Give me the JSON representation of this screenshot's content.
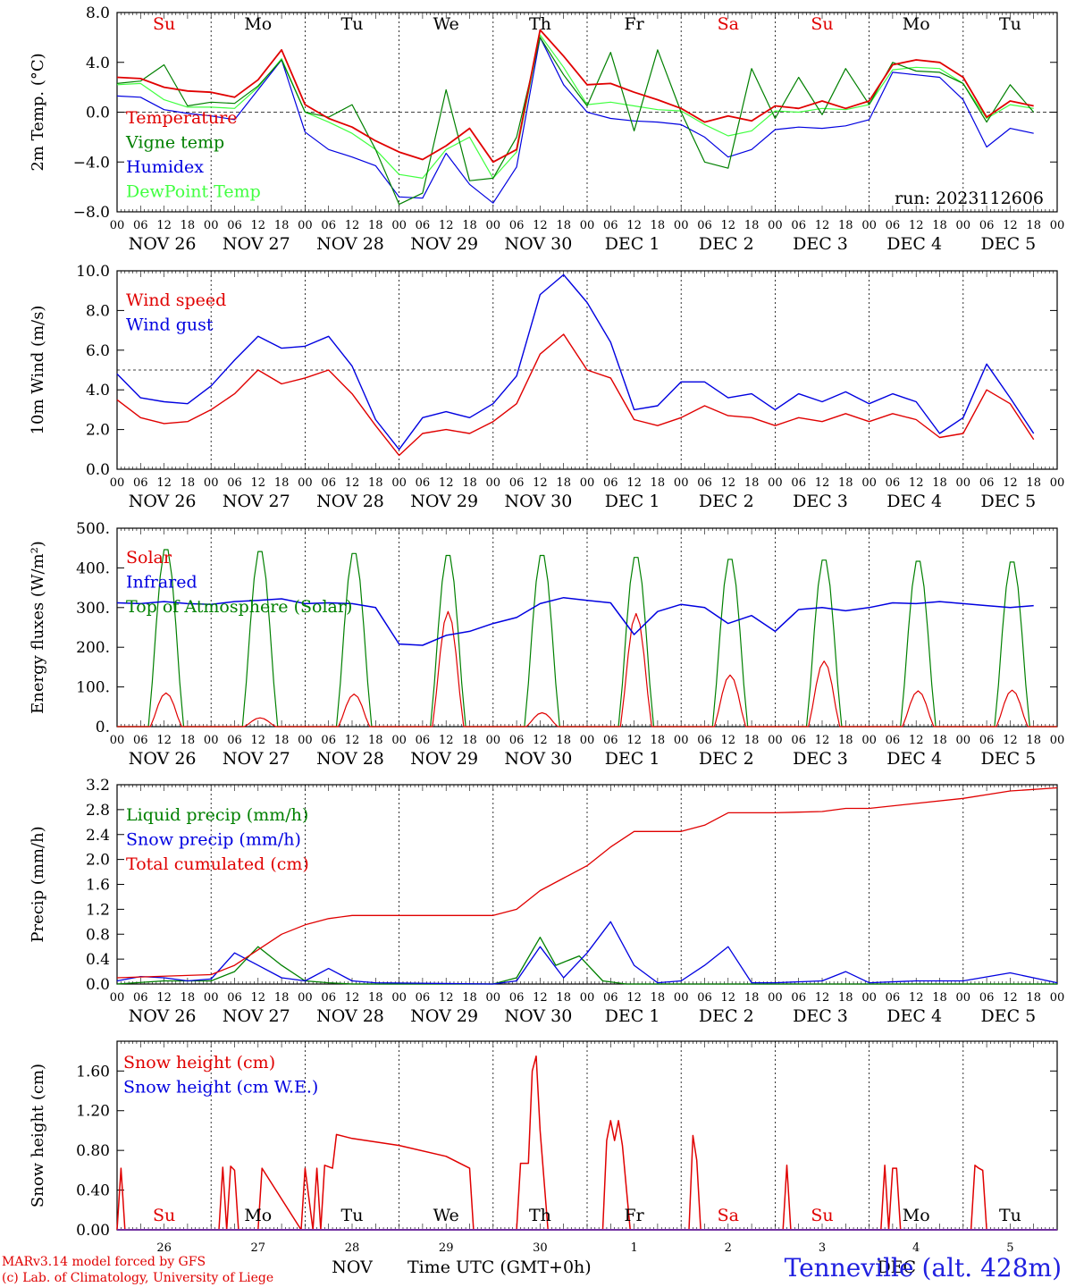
{
  "time": {
    "hours": [
      "00",
      "06",
      "12",
      "18"
    ],
    "date_labels": [
      "NOV 26",
      "NOV 27",
      "NOV 28",
      "NOV 29",
      "NOV 30",
      "DEC  1",
      "DEC  2",
      "DEC  3",
      "DEC  4",
      "DEC  5"
    ],
    "weekdays": [
      "Su",
      "Mo",
      "Tu",
      "We",
      "Th",
      "Fr",
      "Sa",
      "Su",
      "Mo",
      "Tu"
    ],
    "weekday_colors": [
      "#e00000",
      "#000000",
      "#000000",
      "#000000",
      "#000000",
      "#000000",
      "#e00000",
      "#e00000",
      "#000000",
      "#000000"
    ],
    "day_numbers": [
      "26",
      "27",
      "28",
      "29",
      "30",
      "1",
      "2",
      "3",
      "4",
      "5"
    ],
    "month_labels": [
      "NOV",
      "DEC"
    ],
    "xlabel": "Time UTC (GMT+0h)"
  },
  "footer": {
    "credit_line1": "MARv3.14 model forced by GFS",
    "credit_line2": "(c) Lab. of Climatology, University of Liege",
    "station": "Tenneville (alt. 428m)"
  },
  "chart_data": [
    {
      "type": "line",
      "ylabel": "2m Temp. (°C)",
      "ylim": [
        -8,
        8
      ],
      "yticks": [
        "8.0",
        "4.0",
        "0.0",
        "−4.0",
        "−8.0"
      ],
      "ytick_values": [
        8,
        4,
        0,
        -4,
        -8
      ],
      "reference_line": 0,
      "annotation": "run: 2023112606",
      "x_hours_from_start": [
        0,
        6,
        12,
        18,
        24,
        30,
        36,
        42,
        48,
        54,
        60,
        66,
        72,
        78,
        84,
        90,
        96,
        102,
        108,
        114,
        120,
        126,
        132,
        138,
        144,
        150,
        156,
        162,
        168,
        174,
        180,
        186,
        192,
        198,
        204,
        210,
        216,
        222,
        228,
        234
      ],
      "series": [
        {
          "name": "Temperature",
          "color": "#e00000",
          "values": [
            2.8,
            2.7,
            2.0,
            1.7,
            1.6,
            1.2,
            2.6,
            5.0,
            0.6,
            -0.5,
            -1.2,
            -2.3,
            -3.2,
            -3.8,
            -2.7,
            -1.3,
            -4.0,
            -3.0,
            6.6,
            4.5,
            2.2,
            2.3,
            1.6,
            1.0,
            0.3,
            -0.8,
            -0.3,
            -0.7,
            0.5,
            0.3,
            0.9,
            0.3,
            0.9,
            3.8,
            4.2,
            4.0,
            2.8,
            -0.4,
            0.9,
            0.5
          ]
        },
        {
          "name": "Vigne temp",
          "color": "#008000",
          "values": [
            2.3,
            2.5,
            3.8,
            0.5,
            0.8,
            0.7,
            2.1,
            4.2,
            0.0,
            -0.4,
            0.6,
            -3.0,
            -7.4,
            -6.5,
            1.8,
            -5.5,
            -5.3,
            -2.0,
            6.0,
            3.0,
            0.5,
            4.8,
            -1.5,
            5.0,
            0.0,
            -4.0,
            -4.5,
            3.5,
            -0.5,
            2.8,
            -0.2,
            3.5,
            0.6,
            4.0,
            3.3,
            3.2,
            2.3,
            -0.8,
            2.2,
            0.0
          ]
        },
        {
          "name": "Humidex",
          "color": "#0000e0",
          "values": [
            1.3,
            1.2,
            0.2,
            -0.1,
            -0.3,
            -0.6,
            1.8,
            4.2,
            -1.6,
            -3.0,
            -3.6,
            -4.3,
            -6.8,
            -6.9,
            -3.3,
            -5.8,
            -7.3,
            -4.4,
            6.0,
            2.2,
            0.0,
            -0.5,
            -0.7,
            -0.8,
            -1.0,
            -2.0,
            -3.6,
            -3.0,
            -1.4,
            -1.2,
            -1.3,
            -1.1,
            -0.6,
            3.2,
            3.0,
            2.8,
            1.0,
            -2.8,
            -1.3,
            -1.7
          ]
        },
        {
          "name": "DewPoint Temp",
          "color": "#40ff40",
          "values": [
            2.2,
            2.3,
            1.0,
            0.4,
            0.4,
            0.3,
            2.0,
            4.3,
            0.0,
            -0.8,
            -1.7,
            -3.0,
            -5.0,
            -5.3,
            -3.0,
            -2.0,
            -5.3,
            -3.2,
            6.2,
            3.6,
            0.6,
            0.8,
            0.5,
            0.2,
            0.1,
            -1.0,
            -1.9,
            -1.5,
            0.1,
            0.0,
            0.3,
            0.2,
            0.6,
            3.4,
            3.6,
            3.5,
            2.3,
            -0.5,
            0.6,
            0.3
          ]
        }
      ]
    },
    {
      "type": "line",
      "ylabel": "10m Wind (m/s)",
      "ylim": [
        0,
        10
      ],
      "yticks": [
        "10.0",
        "8.0",
        "6.0",
        "4.0",
        "2.0",
        "0.0"
      ],
      "ytick_values": [
        10,
        8,
        6,
        4,
        2,
        0
      ],
      "reference_line": 5,
      "x_hours_from_start": [
        0,
        6,
        12,
        18,
        24,
        30,
        36,
        42,
        48,
        54,
        60,
        66,
        72,
        78,
        84,
        90,
        96,
        102,
        108,
        114,
        120,
        126,
        132,
        138,
        144,
        150,
        156,
        162,
        168,
        174,
        180,
        186,
        192,
        198,
        204,
        210,
        216,
        222,
        228,
        234
      ],
      "series": [
        {
          "name": "Wind speed",
          "color": "#e00000",
          "values": [
            3.5,
            2.6,
            2.3,
            2.4,
            3.0,
            3.8,
            5.0,
            4.3,
            4.6,
            5.0,
            3.8,
            2.2,
            0.7,
            1.8,
            2.0,
            1.8,
            2.4,
            3.3,
            5.8,
            6.8,
            5.0,
            4.6,
            2.5,
            2.2,
            2.6,
            3.2,
            2.7,
            2.6,
            2.2,
            2.6,
            2.4,
            2.8,
            2.4,
            2.8,
            2.5,
            1.6,
            1.8,
            4.0,
            3.3,
            1.5
          ]
        },
        {
          "name": "Wind gust",
          "color": "#0000e0",
          "values": [
            4.8,
            3.6,
            3.4,
            3.3,
            4.2,
            5.5,
            6.7,
            6.1,
            6.2,
            6.7,
            5.2,
            2.5,
            1.0,
            2.6,
            2.9,
            2.6,
            3.3,
            4.7,
            8.8,
            9.8,
            8.4,
            6.4,
            3.0,
            3.2,
            4.4,
            4.4,
            3.6,
            3.8,
            3.0,
            3.8,
            3.4,
            3.9,
            3.3,
            3.8,
            3.4,
            1.8,
            2.6,
            5.3,
            3.6,
            1.8
          ]
        }
      ]
    },
    {
      "type": "line",
      "ylabel": "Energy fluxes (W/m²)",
      "ylim": [
        0,
        500
      ],
      "yticks": [
        "500.",
        "400.",
        "300.",
        "200.",
        "100.",
        "0."
      ],
      "ytick_values": [
        500,
        400,
        300,
        200,
        100,
        0
      ],
      "daily_peaks": {
        "Solar": [
          85,
          22,
          82,
          290,
          35,
          285,
          130,
          165,
          90,
          92
        ],
        "Top of Atmosphere (Solar)": [
          455,
          450,
          445,
          440,
          440,
          435,
          430,
          428,
          425,
          423
        ]
      },
      "series": [
        {
          "name": "Solar",
          "color": "#e00000"
        },
        {
          "name": "Infrared",
          "color": "#0000e0",
          "x_hours_from_start": [
            0,
            6,
            12,
            18,
            24,
            30,
            36,
            42,
            48,
            54,
            60,
            66,
            72,
            78,
            84,
            90,
            96,
            102,
            108,
            114,
            120,
            126,
            132,
            138,
            144,
            150,
            156,
            162,
            168,
            174,
            180,
            186,
            192,
            198,
            204,
            210,
            216,
            222,
            228,
            234
          ],
          "values": [
            312,
            310,
            315,
            310,
            308,
            315,
            318,
            322,
            310,
            312,
            310,
            300,
            208,
            205,
            230,
            240,
            260,
            275,
            310,
            325,
            318,
            312,
            232,
            290,
            308,
            300,
            260,
            280,
            240,
            295,
            300,
            292,
            300,
            312,
            310,
            315,
            310,
            305,
            300,
            305
          ]
        },
        {
          "name": "Top of Atmosphere (Solar)",
          "color": "#008000"
        }
      ]
    },
    {
      "type": "line",
      "ylabel": "Precip (mm/h)",
      "ylim": [
        0,
        3.2
      ],
      "yticks": [
        "3.2",
        "2.8",
        "2.4",
        "2.0",
        "1.6",
        "1.2",
        "0.8",
        "0.4",
        "0.0"
      ],
      "ytick_values": [
        3.2,
        2.8,
        2.4,
        2.0,
        1.6,
        1.2,
        0.8,
        0.4,
        0
      ],
      "series": [
        {
          "name": "Liquid precip (mm/h)",
          "color": "#008000",
          "x_hours_from_start": [
            0,
            12,
            24,
            30,
            36,
            42,
            48,
            54,
            60,
            72,
            96,
            102,
            108,
            112,
            118,
            124,
            130,
            144,
            168,
            192,
            216,
            240
          ],
          "values": [
            0,
            0.05,
            0.05,
            0.2,
            0.6,
            0.3,
            0.05,
            0.02,
            0,
            0,
            0,
            0.1,
            0.75,
            0.3,
            0.45,
            0.05,
            0,
            0,
            0,
            0,
            0,
            0
          ]
        },
        {
          "name": "Snow precip (mm/h)",
          "color": "#0000e0",
          "x_hours_from_start": [
            0,
            6,
            12,
            18,
            24,
            30,
            36,
            42,
            48,
            54,
            60,
            66,
            96,
            102,
            108,
            114,
            120,
            126,
            132,
            138,
            144,
            150,
            156,
            162,
            168,
            180,
            186,
            192,
            204,
            216,
            228,
            240
          ],
          "values": [
            0.05,
            0.12,
            0.1,
            0.05,
            0.08,
            0.5,
            0.3,
            0.1,
            0.05,
            0.25,
            0.05,
            0.02,
            0,
            0.05,
            0.6,
            0.1,
            0.5,
            1.0,
            0.3,
            0.02,
            0.05,
            0.3,
            0.6,
            0.02,
            0.02,
            0.05,
            0.2,
            0.02,
            0.05,
            0.05,
            0.18,
            0.02
          ]
        },
        {
          "name": "Total cumulated (cm)",
          "color": "#e00000",
          "x_hours_from_start": [
            0,
            24,
            30,
            36,
            42,
            48,
            54,
            60,
            72,
            84,
            96,
            102,
            108,
            114,
            120,
            126,
            132,
            138,
            144,
            150,
            156,
            168,
            180,
            186,
            192,
            204,
            216,
            228,
            240
          ],
          "values": [
            0.1,
            0.15,
            0.3,
            0.55,
            0.8,
            0.95,
            1.05,
            1.1,
            1.1,
            1.1,
            1.1,
            1.2,
            1.5,
            1.7,
            1.9,
            2.2,
            2.45,
            2.45,
            2.45,
            2.55,
            2.75,
            2.75,
            2.77,
            2.82,
            2.82,
            2.9,
            2.98,
            3.1,
            3.15
          ]
        }
      ]
    },
    {
      "type": "line",
      "ylabel": "Snow height (cm)",
      "ylim": [
        0,
        1.9
      ],
      "yticks": [
        "1.60",
        "1.20",
        "0.80",
        "0.40",
        "0.00"
      ],
      "ytick_values": [
        1.6,
        1.2,
        0.8,
        0.4,
        0
      ],
      "series": [
        {
          "name": "Snow height (cm)",
          "color": "#e00000",
          "x_hours_from_start": [
            0,
            1,
            2,
            26,
            27,
            28,
            29,
            30,
            31,
            36,
            37,
            47,
            48,
            50,
            51,
            52,
            53,
            55,
            56,
            60,
            72,
            84,
            90,
            91,
            102,
            103,
            104,
            105,
            106,
            107,
            108,
            110,
            124,
            125,
            126,
            127,
            128,
            129,
            131,
            146,
            147,
            148,
            149,
            170,
            171,
            172,
            195,
            196,
            197,
            198,
            199,
            200,
            218,
            219,
            220,
            221,
            222
          ],
          "values": [
            0,
            0.62,
            0,
            0,
            0.63,
            0,
            0.64,
            0.6,
            0,
            0,
            0.62,
            0,
            0.62,
            0,
            0.62,
            0,
            0.65,
            0.62,
            0.96,
            0.92,
            0.85,
            0.74,
            0.62,
            0,
            0,
            0.67,
            0.67,
            0.67,
            1.6,
            1.75,
            1.0,
            0,
            0,
            0.9,
            1.1,
            0.9,
            1.1,
            0.85,
            0,
            0,
            0.95,
            0.7,
            0,
            0,
            0.65,
            0,
            0,
            0.65,
            0,
            0.62,
            0.62,
            0,
            0,
            0.65,
            0.62,
            0.6,
            0
          ]
        },
        {
          "name": "Snow height (cm W.E.)",
          "color": "#0000e0",
          "x_hours_from_start": [
            0,
            240
          ],
          "values": [
            0,
            0
          ]
        }
      ]
    }
  ]
}
